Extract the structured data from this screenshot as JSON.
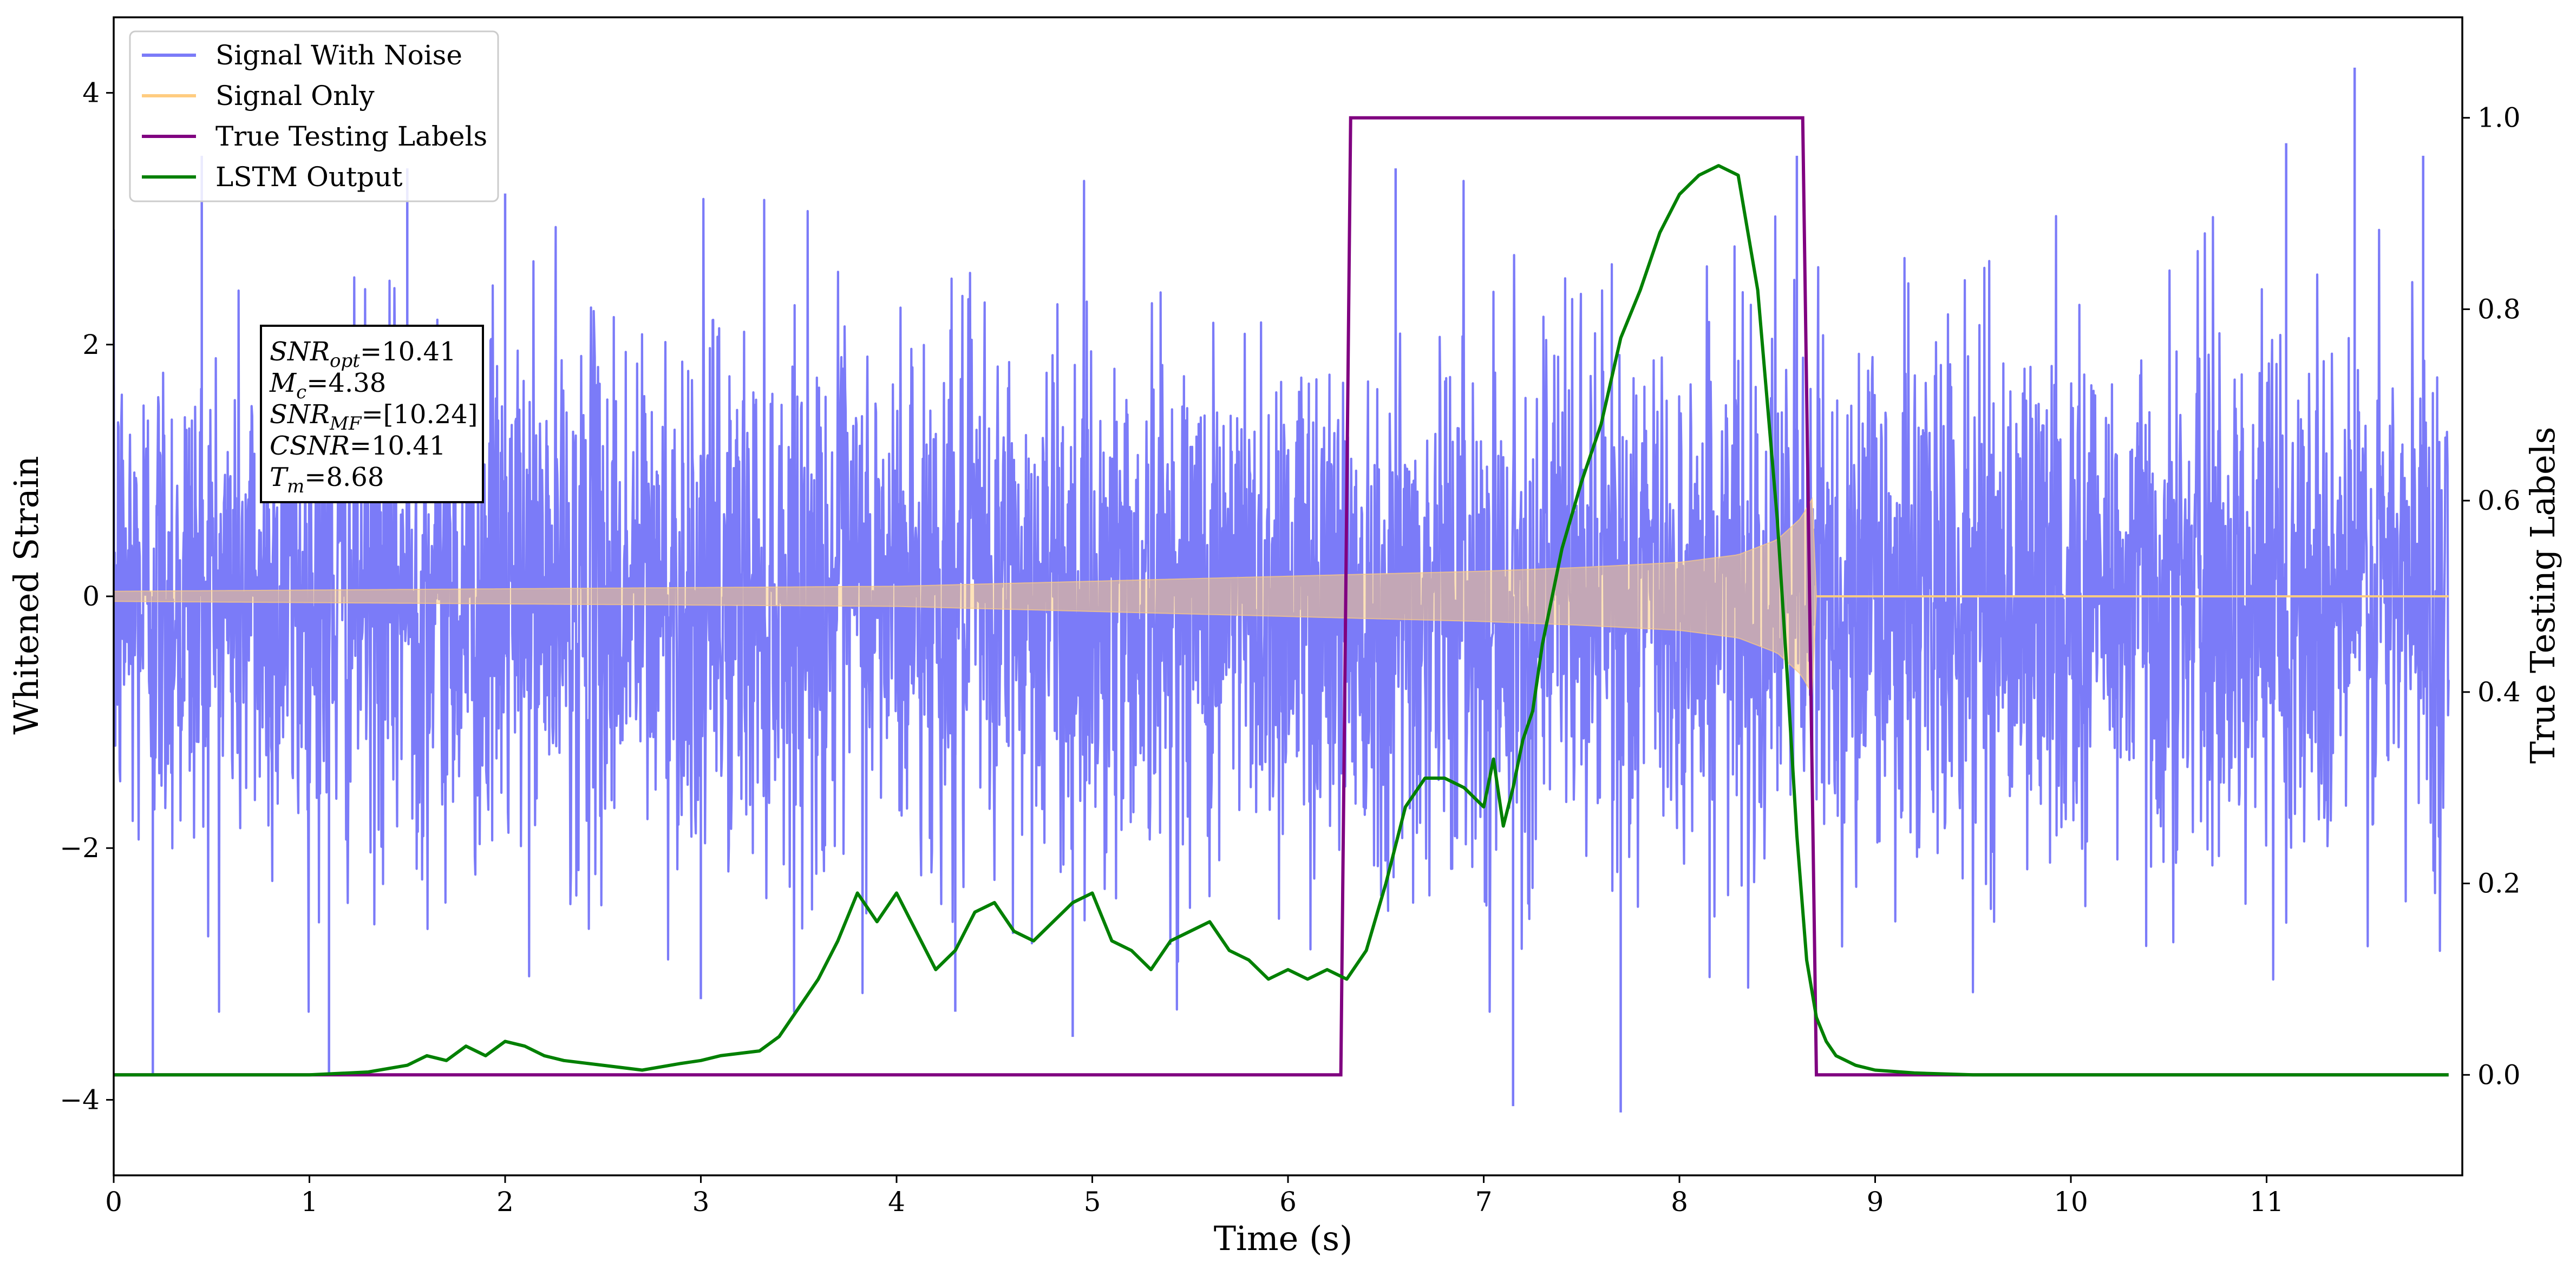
{
  "chart_data": {
    "type": "line",
    "xlabel": "Time (s)",
    "ylabel": "Whitened Strain",
    "ylabel_right": "True Testing Labels",
    "xlim": [
      0,
      12
    ],
    "ylim": [
      -4.6,
      4.6
    ],
    "ylim_right": [
      -0.105,
      1.105
    ],
    "x_ticks": [
      "0",
      "1",
      "2",
      "3",
      "4",
      "5",
      "6",
      "7",
      "8",
      "9",
      "10",
      "11"
    ],
    "y_ticks": [
      "−4",
      "−2",
      "0",
      "2",
      "4"
    ],
    "y_ticks_right": [
      "0.0",
      "0.2",
      "0.4",
      "0.6",
      "0.8",
      "1.0"
    ],
    "grid": false,
    "legend_placement": "top-left",
    "legend": [
      {
        "label": "Signal With Noise",
        "color": "#7b7bf8"
      },
      {
        "label": "Signal Only",
        "color": "#ffcc80"
      },
      {
        "label": "True Testing Labels",
        "color": "#800080"
      },
      {
        "label": "LSTM Output",
        "color": "#008000"
      }
    ],
    "info_box": [
      {
        "label": "SNR",
        "sub": "opt",
        "value": "=10.41"
      },
      {
        "label": "M",
        "sub": "c",
        "value": "=4.38"
      },
      {
        "label": "SNR",
        "sub": "MF",
        "value": "=[10.24]"
      },
      {
        "label": "CSNR",
        "sub": "",
        "value": "=10.41"
      },
      {
        "label": "T",
        "sub": "m",
        "value": "=8.68"
      }
    ],
    "series": [
      {
        "name": "Signal With Noise",
        "axis": "left",
        "color": "#7b7bf8",
        "noise_sigma": 1.05,
        "peaks": [
          [
            0.2,
            -3.8
          ],
          [
            0.45,
            3.5
          ],
          [
            1.1,
            -3.8
          ],
          [
            1.5,
            3.4
          ],
          [
            2.0,
            3.2
          ],
          [
            3.0,
            -3.2
          ],
          [
            4.3,
            -3.3
          ],
          [
            4.9,
            -3.5
          ],
          [
            6.55,
            3.4
          ],
          [
            7.15,
            -4.05
          ],
          [
            7.7,
            -4.1
          ],
          [
            8.6,
            3.5
          ],
          [
            11.1,
            3.6
          ],
          [
            11.45,
            4.2
          ],
          [
            11.8,
            3.5
          ]
        ]
      },
      {
        "name": "Signal Only",
        "axis": "left",
        "color": "#ffcc80",
        "envelope": [
          [
            0,
            0.04
          ],
          [
            2,
            0.06
          ],
          [
            4,
            0.08
          ],
          [
            6,
            0.16
          ],
          [
            7,
            0.2
          ],
          [
            7.5,
            0.23
          ],
          [
            8,
            0.27
          ],
          [
            8.3,
            0.33
          ],
          [
            8.5,
            0.45
          ],
          [
            8.62,
            0.62
          ],
          [
            8.68,
            0.78
          ],
          [
            8.7,
            0.0
          ],
          [
            12,
            0.0
          ]
        ]
      },
      {
        "name": "True Testing Labels",
        "axis": "right",
        "color": "#800080",
        "x": [
          0,
          6.27,
          6.32,
          8.63,
          8.7,
          11.93
        ],
        "y": [
          0,
          0,
          1,
          1,
          0,
          0
        ]
      },
      {
        "name": "LSTM Output",
        "axis": "right",
        "color": "#008000",
        "x": [
          0,
          0.5,
          1.0,
          1.3,
          1.5,
          1.6,
          1.7,
          1.8,
          1.9,
          2.0,
          2.1,
          2.2,
          2.3,
          2.5,
          2.7,
          2.9,
          3.0,
          3.1,
          3.3,
          3.4,
          3.5,
          3.6,
          3.7,
          3.8,
          3.9,
          4.0,
          4.1,
          4.2,
          4.3,
          4.4,
          4.5,
          4.6,
          4.7,
          4.8,
          4.9,
          5.0,
          5.1,
          5.2,
          5.3,
          5.4,
          5.5,
          5.6,
          5.7,
          5.8,
          5.9,
          6.0,
          6.1,
          6.2,
          6.3,
          6.4,
          6.5,
          6.6,
          6.7,
          6.8,
          6.9,
          7.0,
          7.05,
          7.1,
          7.15,
          7.2,
          7.25,
          7.3,
          7.4,
          7.5,
          7.6,
          7.7,
          7.8,
          7.9,
          8.0,
          8.1,
          8.2,
          8.3,
          8.4,
          8.5,
          8.55,
          8.6,
          8.65,
          8.7,
          8.75,
          8.8,
          8.9,
          9.0,
          9.2,
          9.5,
          10.0,
          11.0,
          11.93
        ],
        "y": [
          0.0,
          0.0,
          0.0,
          0.003,
          0.01,
          0.02,
          0.015,
          0.03,
          0.02,
          0.035,
          0.03,
          0.02,
          0.015,
          0.01,
          0.005,
          0.012,
          0.015,
          0.02,
          0.025,
          0.04,
          0.07,
          0.1,
          0.14,
          0.19,
          0.16,
          0.19,
          0.15,
          0.11,
          0.13,
          0.17,
          0.18,
          0.15,
          0.14,
          0.16,
          0.18,
          0.19,
          0.14,
          0.13,
          0.11,
          0.14,
          0.15,
          0.16,
          0.13,
          0.12,
          0.1,
          0.11,
          0.1,
          0.11,
          0.1,
          0.13,
          0.2,
          0.28,
          0.31,
          0.31,
          0.3,
          0.28,
          0.33,
          0.26,
          0.3,
          0.35,
          0.38,
          0.45,
          0.55,
          0.62,
          0.68,
          0.77,
          0.82,
          0.88,
          0.92,
          0.94,
          0.95,
          0.94,
          0.82,
          0.58,
          0.42,
          0.25,
          0.12,
          0.06,
          0.035,
          0.02,
          0.01,
          0.005,
          0.002,
          0.0,
          0.0,
          0.0,
          0.0
        ]
      }
    ]
  }
}
